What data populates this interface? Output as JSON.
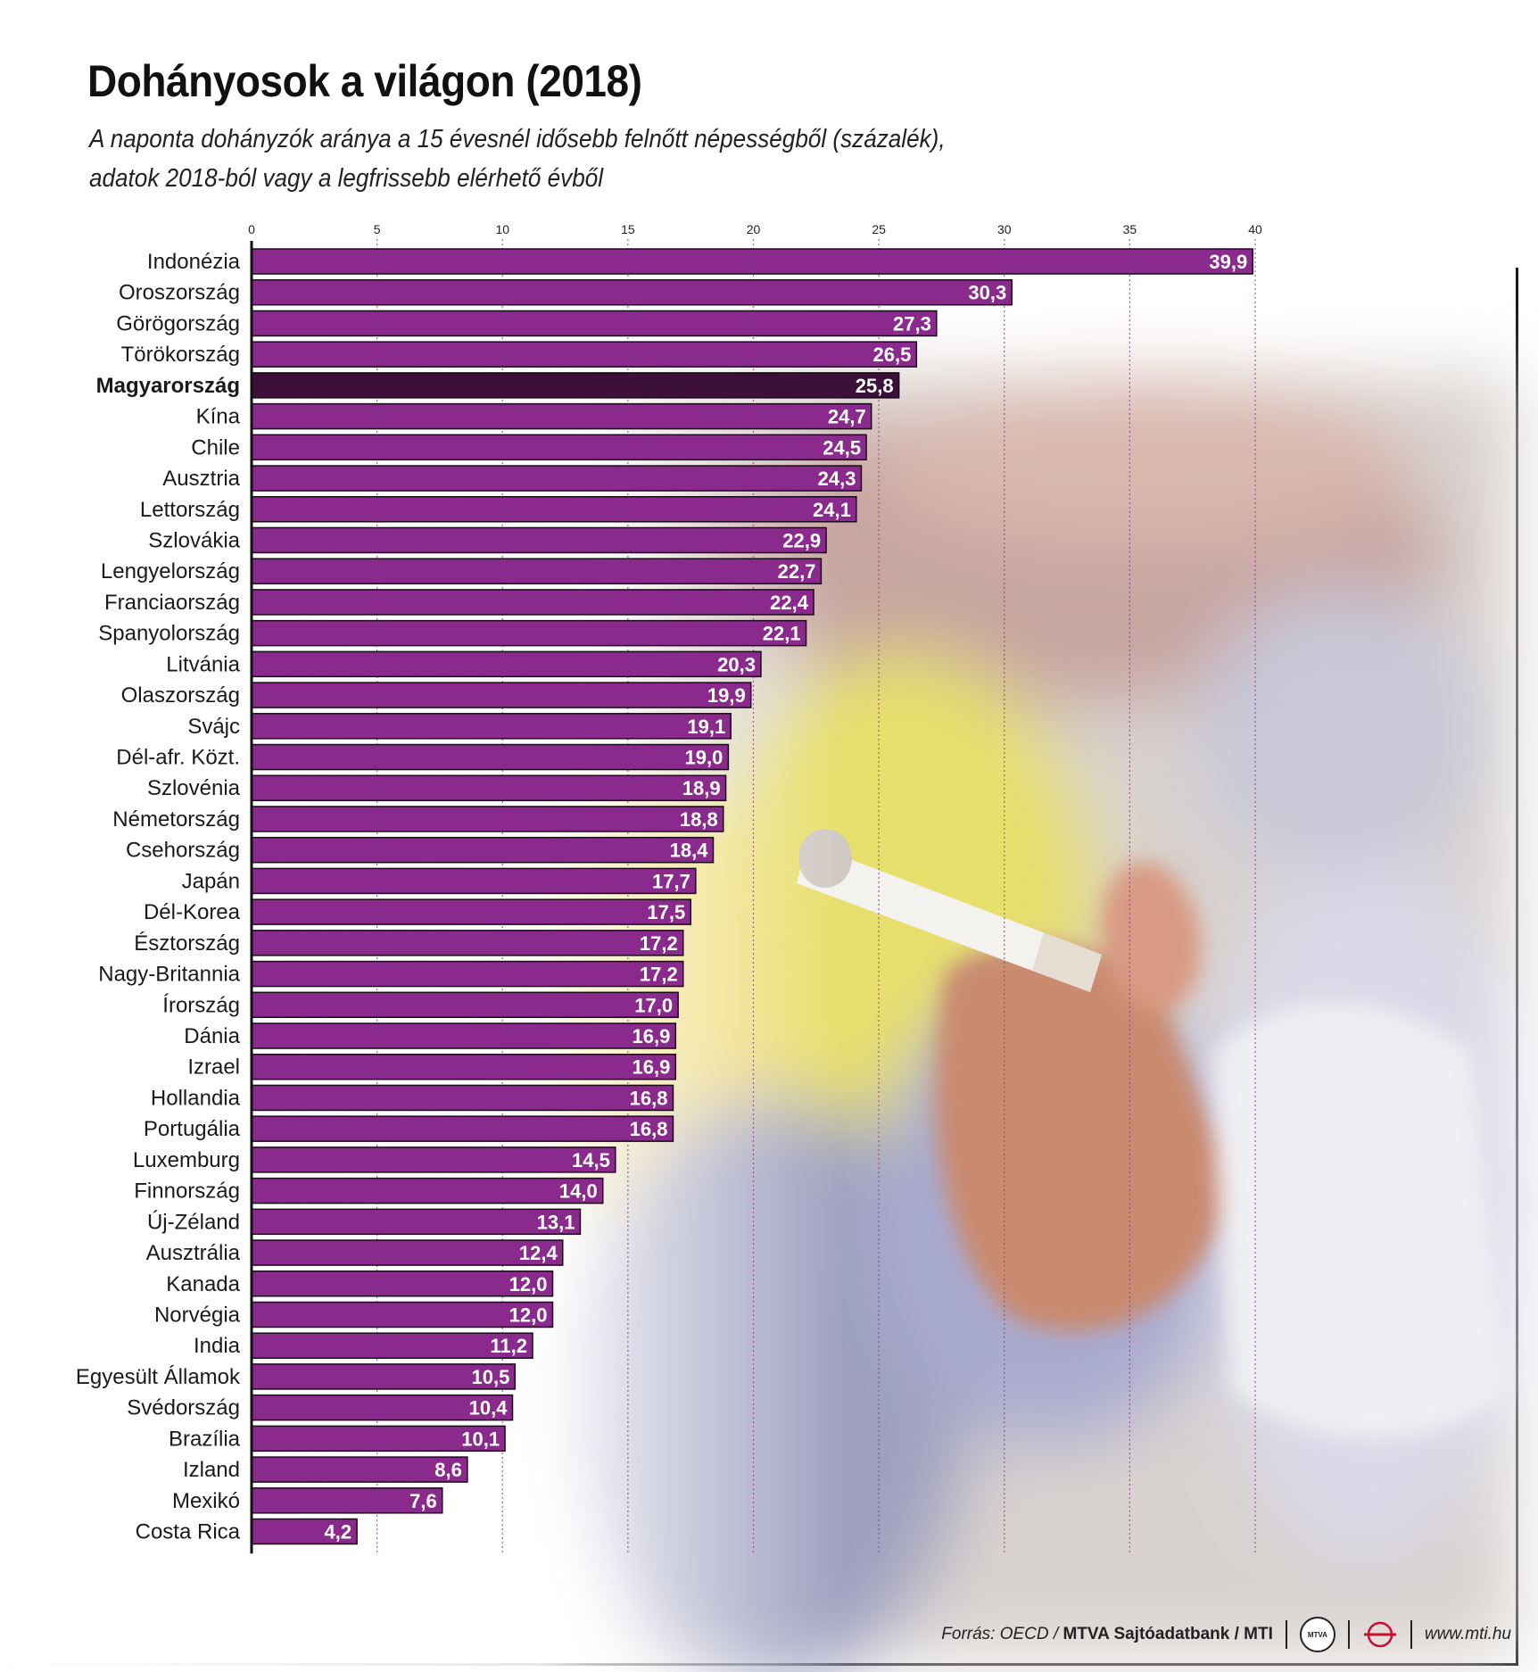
{
  "title": "Dohányosok a világon (2018)",
  "subtitle_line1": "A naponta dohányzók aránya a 15 évesnél idősebb felnőtt népességből (százalék),",
  "subtitle_line2": "adatok 2018-ból vagy a legfrissebb elérhető évből",
  "colors": {
    "bar": "#8a2a8c",
    "highlight": "#3c1038",
    "bar_border": "#1a0a1a",
    "gridline": "#8c3a8c"
  },
  "chart_data": {
    "type": "bar",
    "orientation": "horizontal",
    "xlim": [
      0,
      40
    ],
    "ticks": [
      0,
      5,
      10,
      15,
      20,
      25,
      30,
      35,
      40
    ],
    "highlight": "Magyarország",
    "categories": [
      "Indonézia",
      "Oroszország",
      "Görögország",
      "Törökország",
      "Magyarország",
      "Kína",
      "Chile",
      "Ausztria",
      "Lettország",
      "Szlovákia",
      "Lengyelország",
      "Franciaország",
      "Spanyolország",
      "Litvánia",
      "Olaszország",
      "Svájc",
      "Dél-afr. Közt.",
      "Szlovénia",
      "Németország",
      "Csehország",
      "Japán",
      "Dél-Korea",
      "Észtország",
      "Nagy-Britannia",
      "Írország",
      "Dánia",
      "Izrael",
      "Hollandia",
      "Portugália",
      "Luxemburg",
      "Finnország",
      "Új-Zéland",
      "Ausztrália",
      "Kanada",
      "Norvégia",
      "India",
      "Egyesült Államok",
      "Svédország",
      "Brazília",
      "Izland",
      "Mexikó",
      "Costa Rica"
    ],
    "values": [
      39.9,
      30.3,
      27.3,
      26.5,
      25.8,
      24.7,
      24.5,
      24.3,
      24.1,
      22.9,
      22.7,
      22.4,
      22.1,
      20.3,
      19.9,
      19.1,
      19.0,
      18.9,
      18.8,
      18.4,
      17.7,
      17.5,
      17.2,
      17.2,
      17.0,
      16.9,
      16.9,
      16.8,
      16.8,
      14.5,
      14.0,
      13.1,
      12.4,
      12.0,
      12.0,
      11.2,
      10.5,
      10.4,
      10.1,
      8.6,
      7.6,
      4.2
    ],
    "value_labels": [
      "39,9",
      "30,3",
      "27,3",
      "26,5",
      "25,8",
      "24,7",
      "24,5",
      "24,3",
      "24,1",
      "22,9",
      "22,7",
      "22,4",
      "22,1",
      "20,3",
      "19,9",
      "19,1",
      "19,0",
      "18,9",
      "18,8",
      "18,4",
      "17,7",
      "17,5",
      "17,2",
      "17,2",
      "17,0",
      "16,9",
      "16,9",
      "16,8",
      "16,8",
      "14,5",
      "14,0",
      "13,1",
      "12,4",
      "12,0",
      "12,0",
      "11,2",
      "10,5",
      "10,4",
      "10,1",
      "8,6",
      "7,6",
      "4,2"
    ]
  },
  "footer": {
    "source_prefix": "Forrás: OECD / ",
    "source_bold": "MTVA Sajtóadatbank / MTI",
    "logo_text": "MTVA",
    "url": "www.mti.hu"
  }
}
